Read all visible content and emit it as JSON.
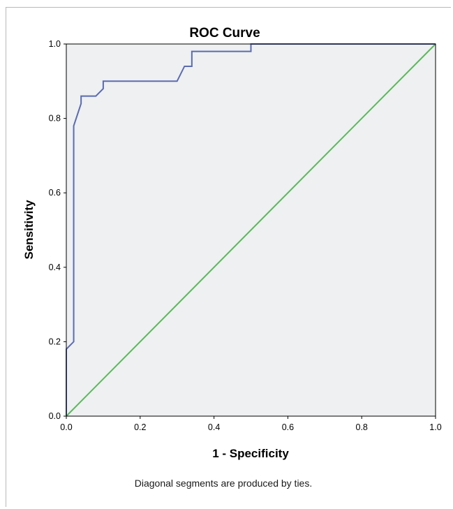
{
  "chart_data": {
    "type": "line",
    "title": "ROC Curve",
    "xlabel": "1 - Specificity",
    "ylabel": "Sensitivity",
    "footnote": "Diagonal segments are produced by ties.",
    "xlim": [
      0,
      1
    ],
    "ylim": [
      0,
      1
    ],
    "xticks": [
      "0.0",
      "0.2",
      "0.4",
      "0.6",
      "0.8",
      "1.0"
    ],
    "yticks": [
      "0.0",
      "0.2",
      "0.4",
      "0.6",
      "0.8",
      "1.0"
    ],
    "grid": false,
    "plot_background": "#eef0f1",
    "series": [
      {
        "color": "#5b6bb0",
        "x": [
          0.0,
          0.0,
          0.02,
          0.02,
          0.04,
          0.04,
          0.08,
          0.1,
          0.1,
          0.3,
          0.32,
          0.34,
          0.34,
          0.5,
          0.5,
          1.0
        ],
        "y": [
          0.0,
          0.18,
          0.2,
          0.78,
          0.84,
          0.86,
          0.86,
          0.88,
          0.9,
          0.9,
          0.94,
          0.94,
          0.98,
          0.98,
          1.0,
          1.0
        ]
      },
      {
        "color": "#5cb85c",
        "x": [
          0.0,
          1.0
        ],
        "y": [
          0.0,
          1.0
        ]
      }
    ]
  }
}
